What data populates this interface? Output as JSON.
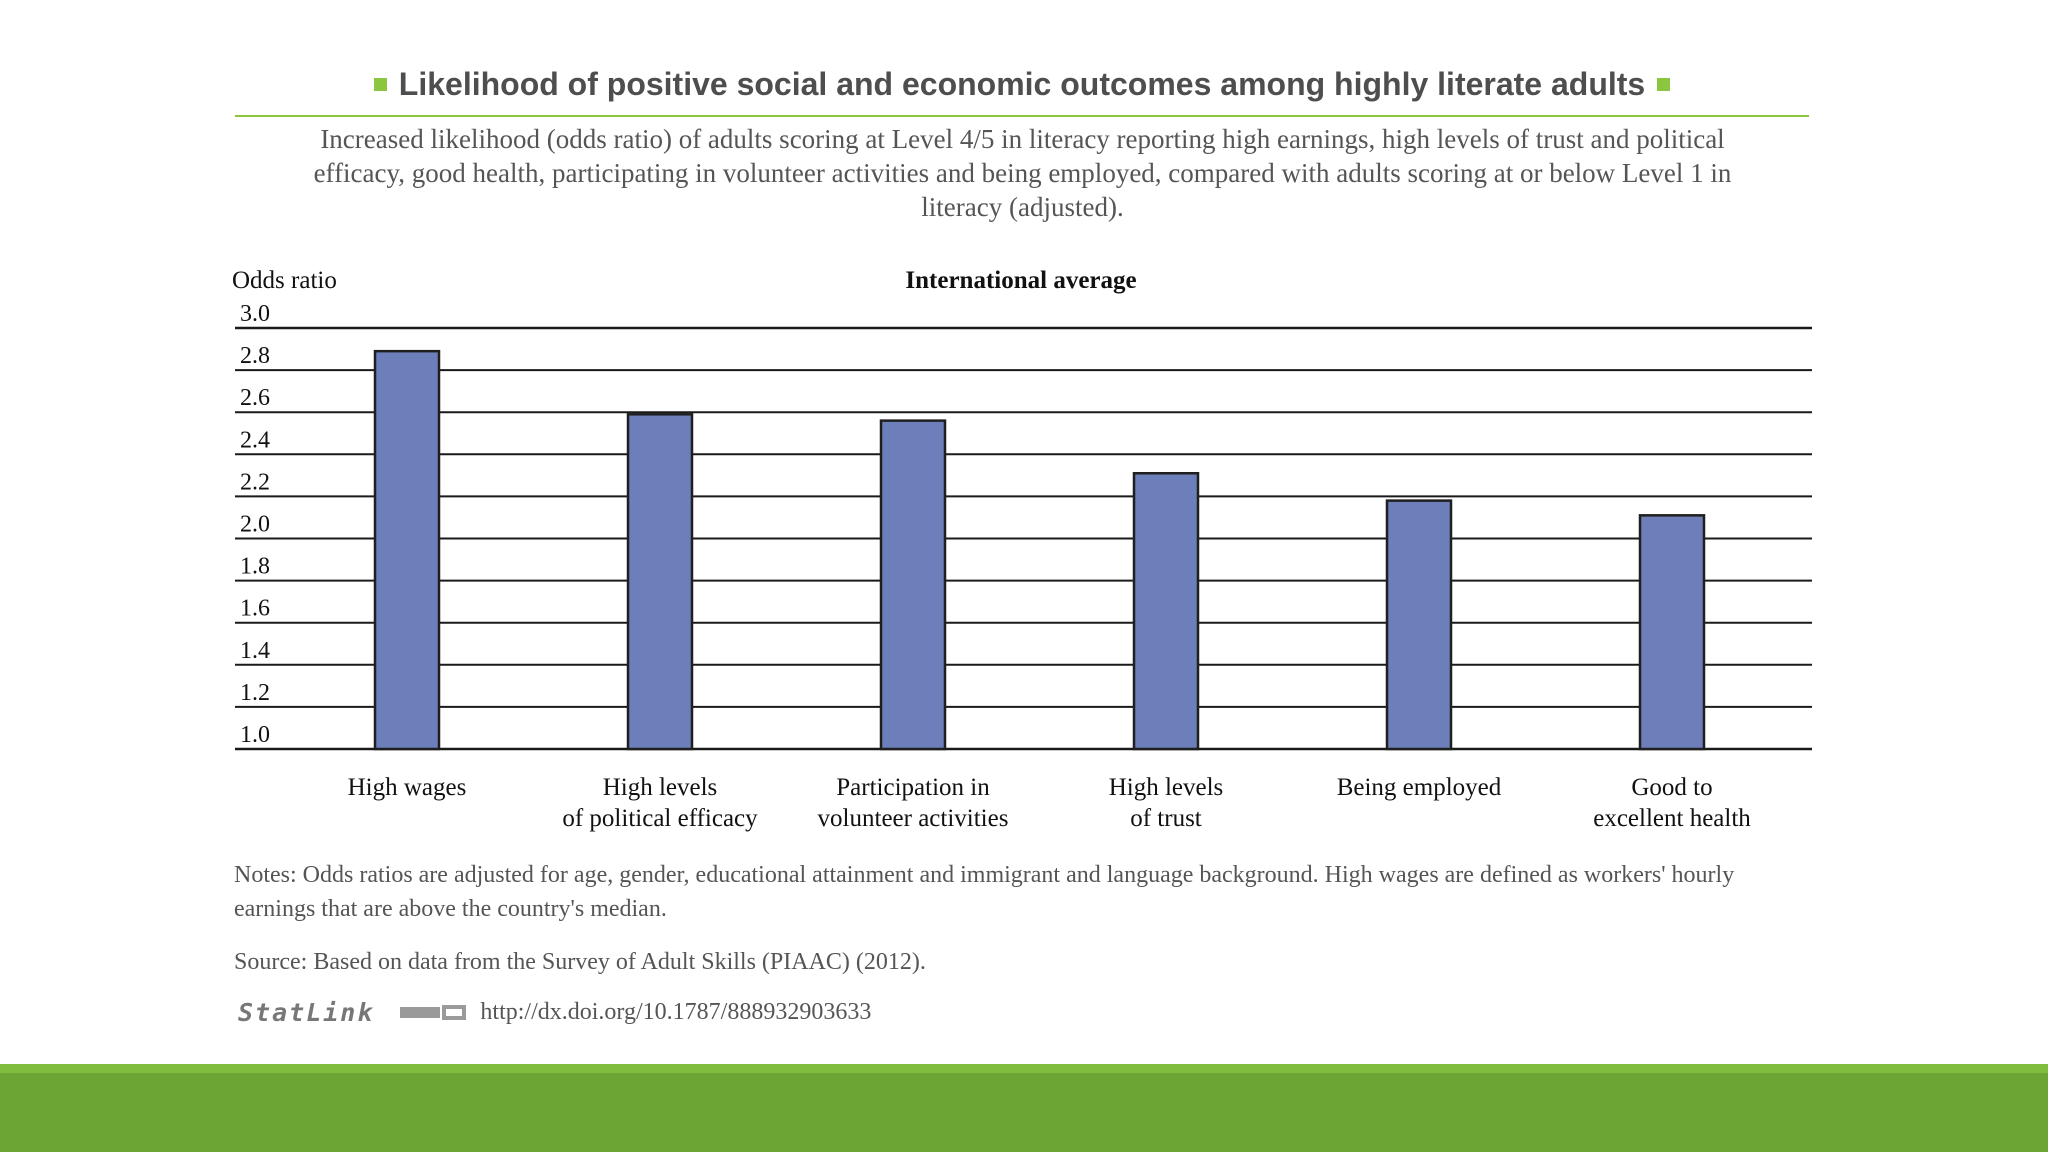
{
  "title": "Likelihood of positive social and economic outcomes among highly literate adults",
  "subtitle": "Increased likelihood (odds ratio) of adults scoring at Level 4/5 in literacy reporting high earnings, high levels of trust and political efficacy, good health, participating in volunteer activities and being employed, compared with adults scoring at or below Level 1 in literacy (adjusted).",
  "notes": "Notes: Odds ratios are adjusted for age, gender, educational attainment and immigrant and language background. High wages are defined as workers' hourly earnings that are above the country's median.",
  "source": "Source: Based on data from the Survey of Adult Skills (PIAAC) (2012).",
  "statlink": {
    "logo": "StatLink",
    "url": "http://dx.doi.org/10.1787/888932903633"
  },
  "colors": {
    "bar": "#6d7fbb",
    "bar_stroke": "#1f1f1f",
    "accent": "#8cc63f",
    "bottom_bar": "#6da535"
  },
  "chart_data": {
    "type": "bar",
    "title": "International average",
    "ylabel": "Odds ratio",
    "xlabel": "",
    "ylim": [
      1.0,
      3.0
    ],
    "yticks": [
      "1.0",
      "1.2",
      "1.4",
      "1.6",
      "1.8",
      "2.0",
      "2.2",
      "2.4",
      "2.6",
      "2.8",
      "3.0"
    ],
    "grid": true,
    "categories": [
      [
        "High wages"
      ],
      [
        "High levels",
        "of political efficacy"
      ],
      [
        "Participation in",
        "volunteer activities"
      ],
      [
        "High levels",
        "of trust"
      ],
      [
        "Being employed"
      ],
      [
        "Good to",
        "excellent health"
      ]
    ],
    "values": [
      2.89,
      2.59,
      2.56,
      2.31,
      2.18,
      2.11
    ]
  }
}
